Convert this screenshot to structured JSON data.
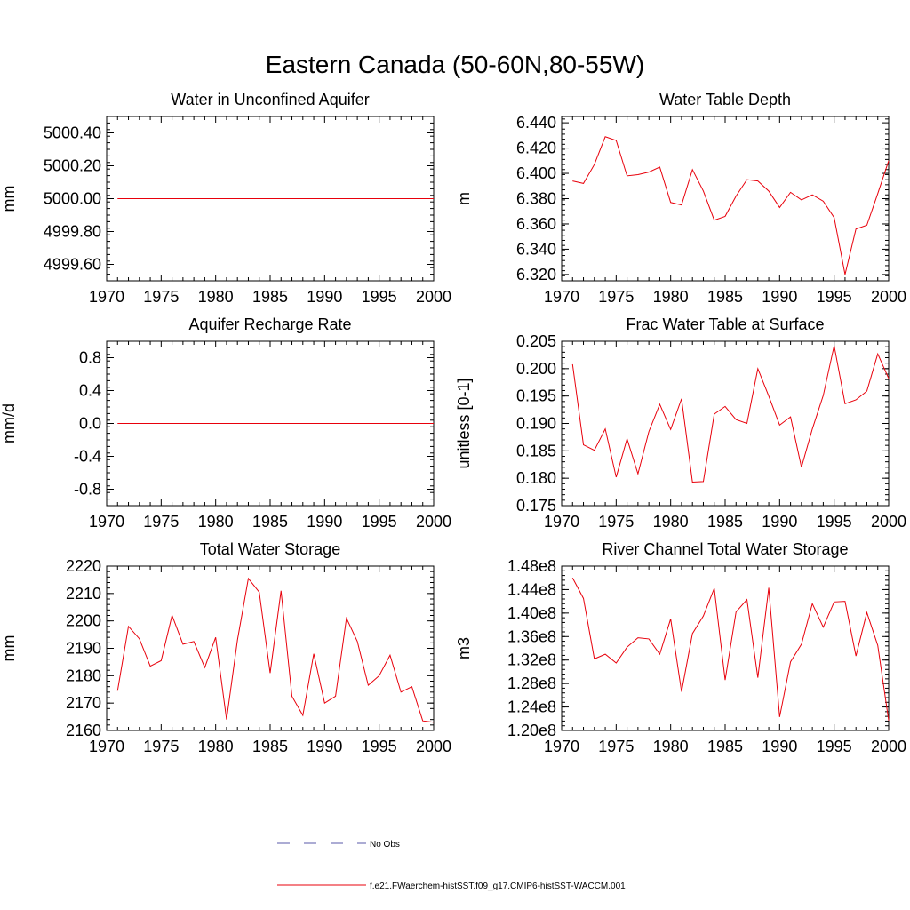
{
  "figure": {
    "title": "Eastern Canada (50-60N,80-55W)",
    "legend": [
      {
        "label": "No Obs",
        "color": "#5a5aa8",
        "style": "dashed"
      },
      {
        "label": "f.e21.FWaerchem-histSST.f09_g17.CMIP6-histSST-WACCM.001",
        "color": "#e8000b",
        "style": "solid"
      }
    ]
  },
  "chart_data": [
    {
      "type": "line",
      "title": "Water in Unconfined Aquifer",
      "ylabel": "mm",
      "xlim": [
        1970,
        2000
      ],
      "ylim": [
        4999.5,
        5000.5
      ],
      "x_ticks": [
        1970,
        1975,
        1980,
        1985,
        1990,
        1995,
        2000
      ],
      "y_ticks": [
        "4999.60",
        "4999.80",
        "5000.00",
        "5000.20",
        "5000.40"
      ],
      "y_minor_step": 0.04,
      "grid": false,
      "series": [
        {
          "x": [
            1971,
            2000
          ],
          "values": [
            5000.0,
            5000.0
          ],
          "color": "#e8000b"
        }
      ]
    },
    {
      "type": "line",
      "title": "Water Table Depth",
      "ylabel": "m",
      "xlim": [
        1970,
        2000
      ],
      "ylim": [
        6.315,
        6.445
      ],
      "x_ticks": [
        1970,
        1975,
        1980,
        1985,
        1990,
        1995,
        2000
      ],
      "y_ticks": [
        "6.320",
        "6.340",
        "6.360",
        "6.380",
        "6.400",
        "6.420",
        "6.440"
      ],
      "y_minor_step": 0.004,
      "grid": false,
      "series": [
        {
          "x": [
            1971,
            1972,
            1973,
            1974,
            1975,
            1976,
            1977,
            1978,
            1979,
            1980,
            1981,
            1982,
            1983,
            1984,
            1985,
            1986,
            1987,
            1988,
            1989,
            1990,
            1991,
            1992,
            1993,
            1994,
            1995,
            1996,
            1997,
            1998,
            1999,
            2000
          ],
          "values": [
            6.394,
            6.392,
            6.407,
            6.429,
            6.426,
            6.398,
            6.399,
            6.401,
            6.405,
            6.377,
            6.375,
            6.403,
            6.386,
            6.363,
            6.366,
            6.382,
            6.395,
            6.394,
            6.386,
            6.373,
            6.385,
            6.379,
            6.383,
            6.378,
            6.365,
            6.32,
            6.356,
            6.359,
            6.384,
            6.41
          ],
          "color": "#e8000b"
        }
      ]
    },
    {
      "type": "line",
      "title": "Aquifer Recharge Rate",
      "ylabel": "mm/d",
      "xlim": [
        1970,
        2000
      ],
      "ylim": [
        -1.0,
        1.0
      ],
      "x_ticks": [
        1970,
        1975,
        1980,
        1985,
        1990,
        1995,
        2000
      ],
      "y_ticks": [
        "-0.8",
        "-0.4",
        "0.0",
        "0.4",
        "0.8"
      ],
      "y_minor_step": 0.08,
      "grid": false,
      "series": [
        {
          "x": [
            1971,
            2000
          ],
          "values": [
            0.0,
            0.0
          ],
          "color": "#e8000b"
        }
      ]
    },
    {
      "type": "line",
      "title": "Frac Water Table at Surface",
      "ylabel": "unitless [0-1]",
      "xlim": [
        1970,
        2000
      ],
      "ylim": [
        0.175,
        0.205
      ],
      "x_ticks": [
        1970,
        1975,
        1980,
        1985,
        1990,
        1995,
        2000
      ],
      "y_ticks": [
        "0.175",
        "0.180",
        "0.185",
        "0.190",
        "0.195",
        "0.200",
        "0.205"
      ],
      "y_minor_step": 0.001,
      "grid": false,
      "series": [
        {
          "x": [
            1971,
            1972,
            1973,
            1974,
            1975,
            1976,
            1977,
            1978,
            1979,
            1980,
            1981,
            1982,
            1983,
            1984,
            1985,
            1986,
            1987,
            1988,
            1989,
            1990,
            1991,
            1992,
            1993,
            1994,
            1995,
            1996,
            1997,
            1998,
            1999,
            2000
          ],
          "values": [
            0.2008,
            0.1861,
            0.1851,
            0.189,
            0.1802,
            0.1872,
            0.1808,
            0.1885,
            0.1935,
            0.1889,
            0.1945,
            0.1793,
            0.1794,
            0.1917,
            0.1931,
            0.1907,
            0.19,
            0.2,
            0.195,
            0.1897,
            0.1912,
            0.182,
            0.189,
            0.1951,
            0.2042,
            0.1936,
            0.1943,
            0.1959,
            0.2027,
            0.1982
          ],
          "color": "#e8000b"
        }
      ]
    },
    {
      "type": "line",
      "title": "Total Water Storage",
      "ylabel": "mm",
      "xlim": [
        1970,
        2000
      ],
      "ylim": [
        2160,
        2220
      ],
      "x_ticks": [
        1970,
        1975,
        1980,
        1985,
        1990,
        1995,
        2000
      ],
      "y_ticks": [
        "2160",
        "2170",
        "2180",
        "2190",
        "2200",
        "2210",
        "2220"
      ],
      "y_minor_step": 2,
      "grid": false,
      "series": [
        {
          "x": [
            1971,
            1972,
            1973,
            1974,
            1975,
            1976,
            1977,
            1978,
            1979,
            1980,
            1981,
            1982,
            1983,
            1984,
            1985,
            1986,
            1987,
            1988,
            1989,
            1990,
            1991,
            1992,
            1993,
            1994,
            1995,
            1996,
            1997,
            1998,
            1999,
            2000
          ],
          "values": [
            2174.5,
            2198.0,
            2193.5,
            2183.5,
            2185.5,
            2202.0,
            2191.5,
            2192.5,
            2183.0,
            2194.0,
            2164.0,
            2193.0,
            2215.5,
            2210.5,
            2181.0,
            2211.0,
            2172.5,
            2165.5,
            2188.0,
            2170.0,
            2172.5,
            2201.0,
            2192.5,
            2176.5,
            2180.0,
            2187.5,
            2174.0,
            2176.0,
            2163.5,
            2163.0
          ],
          "color": "#e8000b"
        }
      ]
    },
    {
      "type": "line",
      "title": "River Channel Total Water Storage",
      "ylabel": "m3",
      "xlim": [
        1970,
        2000
      ],
      "ylim": [
        120000000.0,
        148000000.0
      ],
      "x_ticks": [
        1970,
        1975,
        1980,
        1985,
        1990,
        1995,
        2000
      ],
      "y_ticks": [
        "1.20e8",
        "1.24e8",
        "1.28e8",
        "1.32e8",
        "1.36e8",
        "1.40e8",
        "1.44e8",
        "1.48e8"
      ],
      "y_minor_step": 800000,
      "grid": false,
      "series": [
        {
          "x": [
            1971,
            1972,
            1973,
            1974,
            1975,
            1976,
            1977,
            1978,
            1979,
            1980,
            1981,
            1982,
            1983,
            1984,
            1985,
            1986,
            1987,
            1988,
            1989,
            1990,
            1991,
            1992,
            1993,
            1994,
            1995,
            1996,
            1997,
            1998,
            1999,
            2000
          ],
          "values": [
            146000000,
            142500000,
            132200000,
            133000000,
            131500000,
            134200000,
            135800000,
            135600000,
            133000000,
            139000000,
            126600000,
            136500000,
            139500000,
            144200000,
            128600000,
            140200000,
            142300000,
            129000000,
            144300000,
            122300000,
            131700000,
            134700000,
            141600000,
            137600000,
            141900000,
            142000000,
            132700000,
            140100000,
            134500000,
            121700000
          ],
          "color": "#e8000b"
        }
      ]
    }
  ]
}
